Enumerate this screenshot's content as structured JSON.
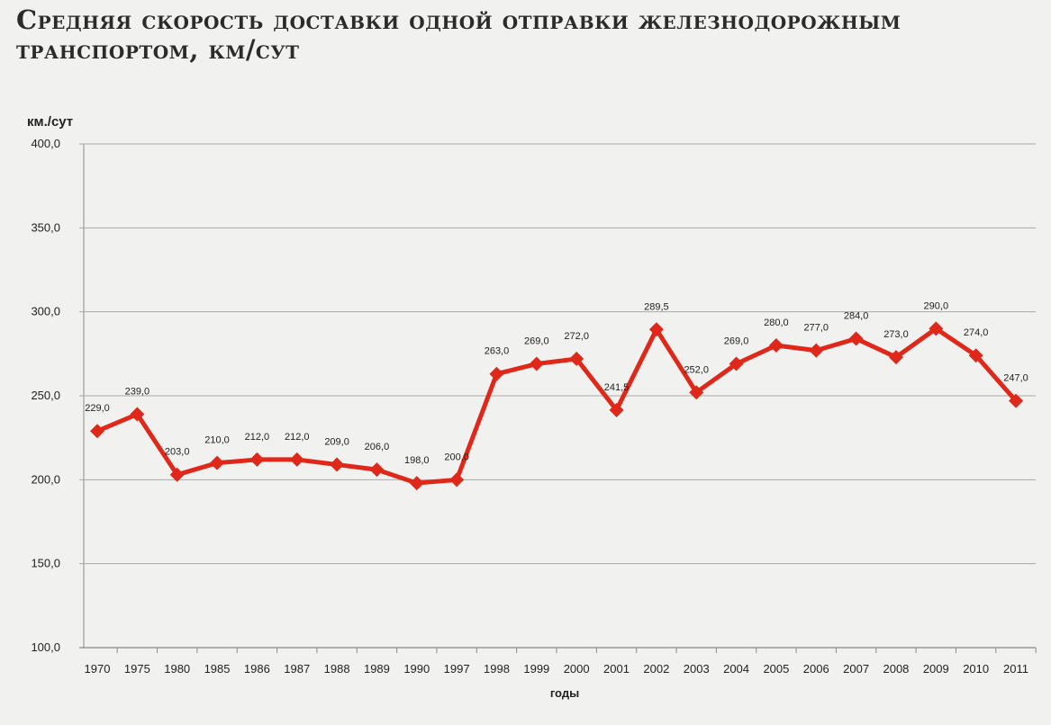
{
  "chart_data": {
    "type": "line",
    "title_lines": [
      "Средняя скорость доставки одной отправки железнодорожным",
      "транспортом, км/сут"
    ],
    "ylabel": "км./сут",
    "xlabel": "годы",
    "ylim": [
      100,
      400
    ],
    "yticks": [
      "100,0",
      "150,0",
      "200,0",
      "250,0",
      "300,0",
      "350,0",
      "400,0"
    ],
    "grid": true,
    "legend": "none",
    "line_color": "#e0281a",
    "categories": [
      "1970",
      "1975",
      "1980",
      "1985",
      "1986",
      "1987",
      "1988",
      "1989",
      "1990",
      "1997",
      "1998",
      "1999",
      "2000",
      "2001",
      "2002",
      "2003",
      "2004",
      "2005",
      "2006",
      "2007",
      "2008",
      "2009",
      "2010",
      "2011"
    ],
    "values": [
      229.0,
      239.0,
      203.0,
      210.0,
      212.0,
      212.0,
      209.0,
      206.0,
      198.0,
      200.0,
      263.0,
      269.0,
      272.0,
      241.5,
      289.5,
      252.0,
      269.0,
      280.0,
      277.0,
      284.0,
      273.0,
      290.0,
      274.0,
      247.0
    ],
    "data_labels": [
      "229,0",
      "239,0",
      "203,0",
      "210,0",
      "212,0",
      "212,0",
      "209,0",
      "206,0",
      "198,0",
      "200,0",
      "263,0",
      "269,0",
      "272,0",
      "241,5",
      "289,5",
      "252,0",
      "269,0",
      "280,0",
      "277,0",
      "284,0",
      "273,0",
      "290,0",
      "274,0",
      "247,0"
    ]
  }
}
